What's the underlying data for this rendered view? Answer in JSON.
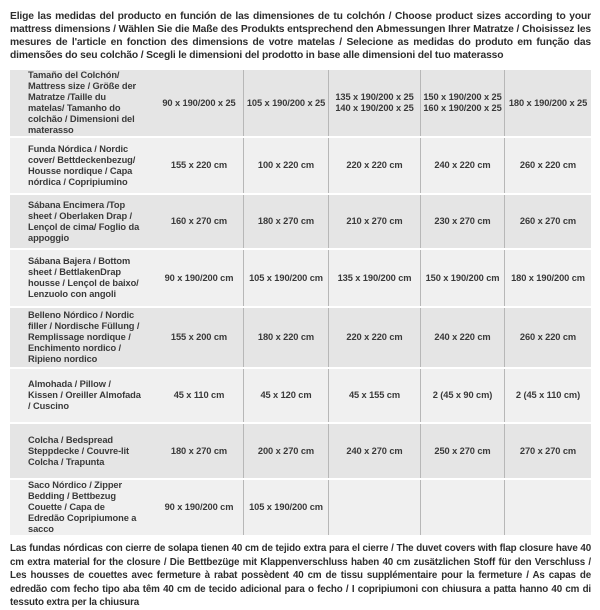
{
  "intro_text": "Elige las medidas del producto en función de las dimensiones de tu colchón / Choose product sizes according to your mattress dimensions / Wählen Sie die Maße des Produkts entsprechend den Abmessungen Ihrer Matratze / Choisissez les mesures de l'article en fonction des dimensions de votre matelas / Selecione as medidas do produto em função das dimensões do seu colchão / Scegli le dimensioni del prodotto in base alle dimensioni del tuo materasso",
  "colors": {
    "row_dark": "#e5e5e5",
    "row_light": "#f0f0f0",
    "divider": "#b7b7b7",
    "text": "#333333",
    "background": "#ffffff"
  },
  "table": {
    "rows": [
      {
        "label": "Tamaño del Colchón/ Mattress size / Größe der Matratze /Taille du matelas/ Tamanho do colchão / Dimensioni del materasso",
        "values": [
          "90 x 190/200 x 25",
          "105 x 190/200 x 25",
          "135 x 190/200 x 25\n140 x 190/200 x 25",
          "150 x 190/200 x 25\n160 x 190/200 x 25",
          "180 x 190/200 x 25"
        ]
      },
      {
        "label": "Funda Nórdica /  Nordic cover/ Bettdeckenbezug/ Housse nordique  / Capa nórdica / Copripiumino",
        "values": [
          "155 x 220 cm",
          "100 x 220 cm",
          "220 x 220 cm",
          "240 x 220 cm",
          "260 x 220 cm"
        ]
      },
      {
        "label": "Sábana Encimera /Top sheet / Oberlaken Drap / Lençol de cima/ Foglio da appoggio",
        "values": [
          "160 x 270 cm",
          "180 x 270 cm",
          "210 x 270 cm",
          "230 x 270 cm",
          "260 x 270 cm"
        ]
      },
      {
        "label": "Sábana Bajera / Bottom sheet / BettlakenDrap housse / Lençol de baixo/ Lenzuolo con angoli",
        "values": [
          "90 x 190/200 cm",
          "105 x 190/200 cm",
          "135 x 190/200 cm",
          "150 x 190/200 cm",
          "180 x 190/200 cm"
        ]
      },
      {
        "label": "Belleno Nórdico / Nordic filler / Nordische Füllung / Remplissage nordique / Enchimento nordico / Ripieno nordico",
        "values": [
          "155 x 200 cm",
          "180 x 220 cm",
          "220 x 220 cm",
          "240 x 220 cm",
          "260 x 220 cm"
        ]
      },
      {
        "label": "Almohada  / Pillow / Kissen / Oreiller Almofada / Cuscino",
        "values": [
          "45 x 110 cm",
          "45 x 120 cm",
          "45 x 155 cm",
          "2 (45 x 90 cm)",
          "2 (45 x 110 cm)"
        ]
      },
      {
        "label": "Colcha / Bedspread Steppdecke / Couvre-lit Colcha / Trapunta",
        "values": [
          "180 x 270 cm",
          "200 x 270 cm",
          "240 x 270 cm",
          "250 x 270 cm",
          "270 x 270 cm"
        ]
      },
      {
        "label": "Saco Nórdico / Zipper Bedding / Bettbezug Couette  / Capa de Edredão Copripiumone a sacco",
        "values": [
          "90 x 190/200 cm",
          "105 x 190/200 cm",
          "",
          "",
          ""
        ]
      }
    ]
  },
  "footer_text": "Las fundas nórdicas con cierre de solapa tienen 40 cm de tejido extra para el cierre  / The duvet covers with flap closure have 40 cm extra material for the closure / Die Bettbezüge mit Klappenverschluss haben 40 cm zusätzlichen Stoff für den Verschluss / Les housses de couettes avec fermeture à rabat possèdent 40 cm de tissu supplémentaire pour la fermeture / As capas de edredão com fecho tipo aba têm 40 cm de tecido adicional para o fecho / I copripiumoni con chiusura a patta hanno 40 cm di tessuto extra per la chiusura"
}
